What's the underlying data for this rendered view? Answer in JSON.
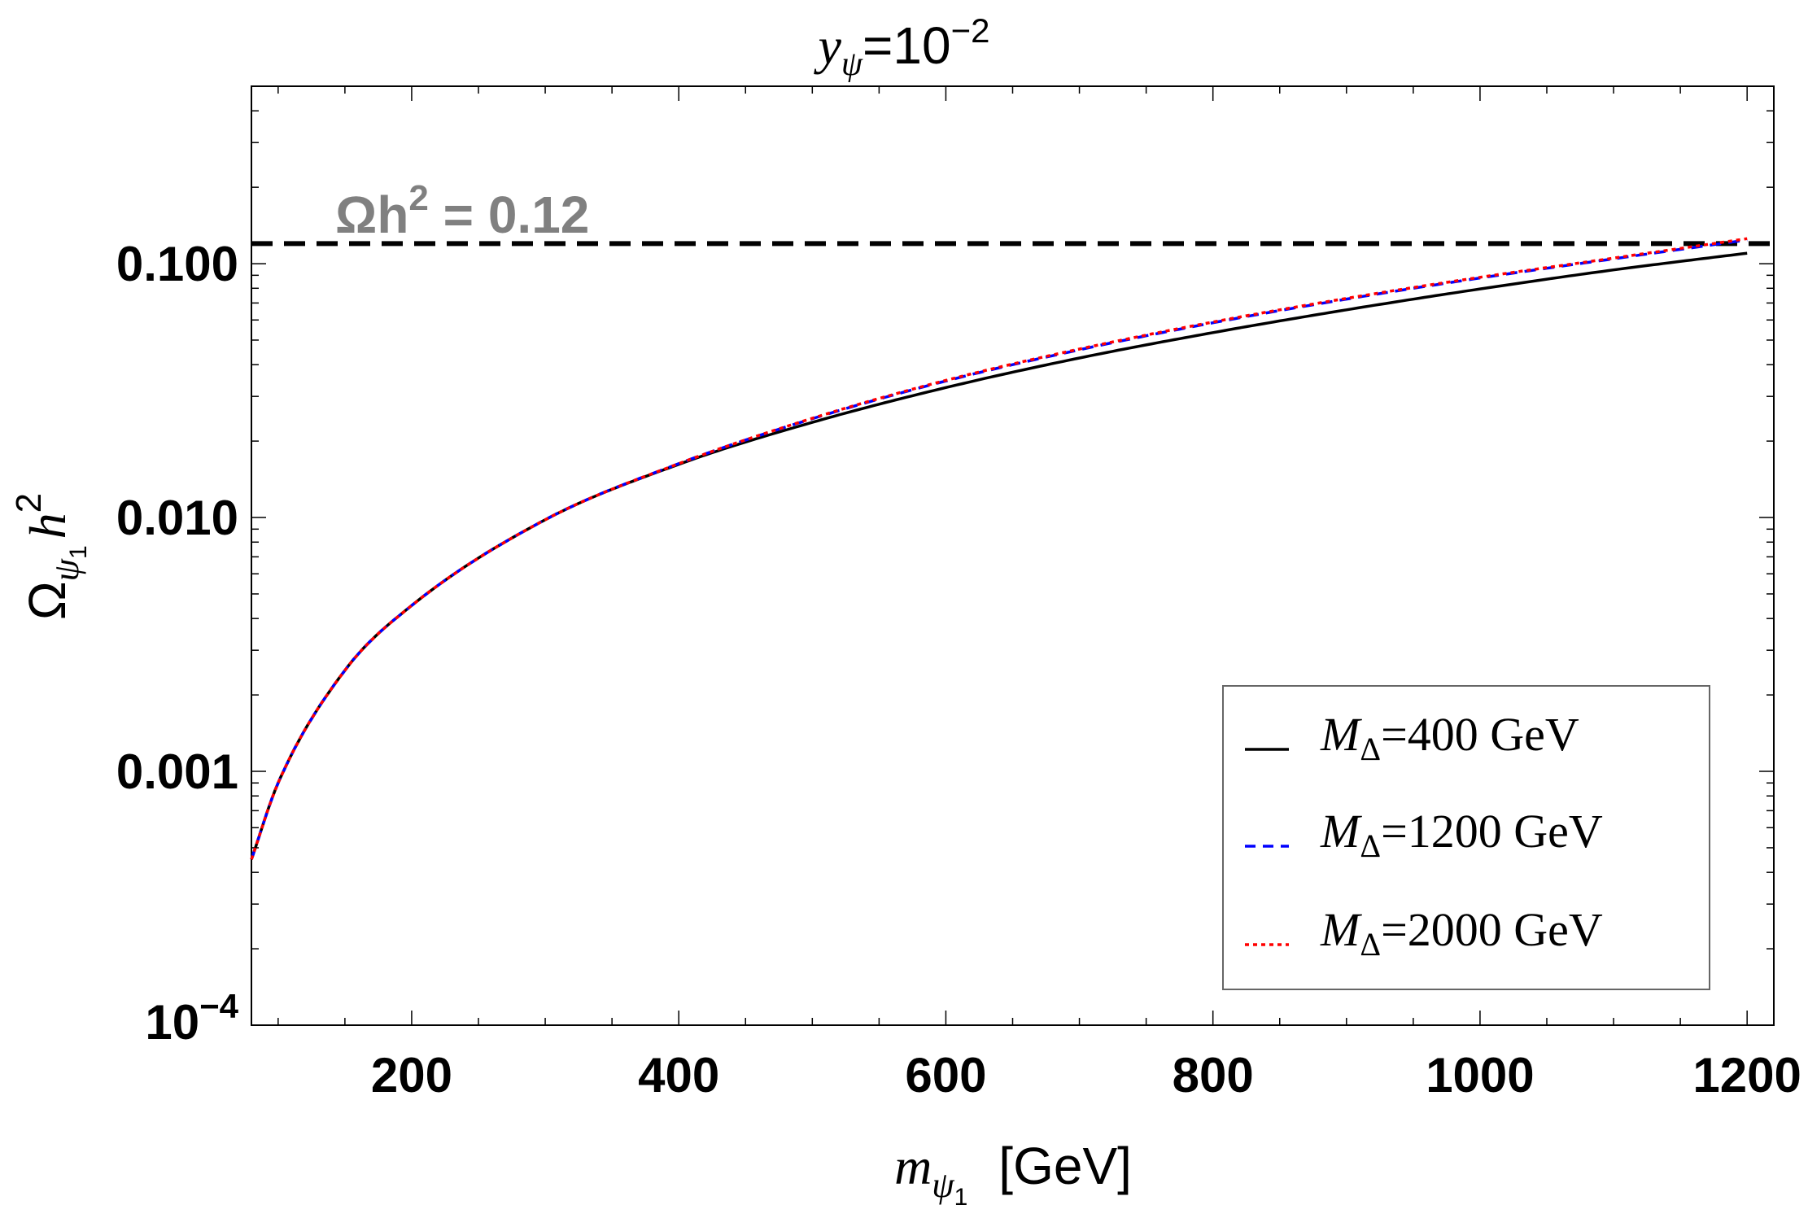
{
  "chart_data": {
    "type": "line",
    "title": "y_ψ=10^−2",
    "title_parts": {
      "base": "y",
      "sub": "ψ",
      "mid": "=10",
      "sup": "−2"
    },
    "xlabel_parts": {
      "base": "m",
      "sub": "ψ",
      "subsub": "1",
      "unit": "[GeV]"
    },
    "ylabel_parts": {
      "base": "Ω",
      "sub": "ψ",
      "subsub": "1",
      "h": "h",
      "sup": "2"
    },
    "x_scale": "linear",
    "y_scale": "log",
    "xlim": [
      80,
      1220
    ],
    "ylim": [
      0.0001,
      0.5
    ],
    "x_ticks": [
      200,
      400,
      600,
      800,
      1000,
      1200
    ],
    "x_tick_labels": [
      "200",
      "400",
      "600",
      "800",
      "1000",
      "1200"
    ],
    "y_ticks": [
      0.0001,
      0.001,
      0.01,
      0.1
    ],
    "y_tick_labels": [
      {
        "base": "10",
        "sup": "−4"
      },
      {
        "text": "0.001"
      },
      {
        "text": "0.010"
      },
      {
        "text": "0.100"
      }
    ],
    "grid": false,
    "legend_position": "bottom-right",
    "reference_line": {
      "y": 0.12,
      "style": "dashed",
      "color": "#000000",
      "label": "Ωh",
      "label_sup": "2",
      "label_rest": " = 0.12",
      "label_color": "#808080"
    },
    "series": [
      {
        "name": "M_Δ=400 GeV",
        "legend_parts": {
          "base": "M",
          "sub": "Δ",
          "rest": "=400 GeV"
        },
        "color": "#000000",
        "style": "solid",
        "x": [
          80,
          100,
          150,
          200,
          300,
          400,
          500,
          600,
          700,
          800,
          900,
          1000,
          1100,
          1200
        ],
        "y": [
          0.00045,
          0.0009,
          0.0025,
          0.0045,
          0.0098,
          0.0162,
          0.0237,
          0.0325,
          0.0425,
          0.0535,
          0.0658,
          0.0795,
          0.0945,
          0.11
        ]
      },
      {
        "name": "M_Δ=1200 GeV",
        "legend_parts": {
          "base": "M",
          "sub": "Δ",
          "rest": "=1200 GeV"
        },
        "color": "#0000ff",
        "style": "dashed",
        "x": [
          80,
          100,
          150,
          200,
          300,
          400,
          500,
          600,
          700,
          800,
          900,
          1000,
          1100,
          1200
        ],
        "y": [
          0.00045,
          0.0009,
          0.0025,
          0.0045,
          0.0098,
          0.0163,
          0.0245,
          0.0345,
          0.0458,
          0.0585,
          0.0725,
          0.0878,
          0.1045,
          0.124
        ]
      },
      {
        "name": "M_Δ=2000 GeV",
        "legend_parts": {
          "base": "M",
          "sub": "Δ",
          "rest": "=2000 GeV"
        },
        "color": "#ff0000",
        "style": "dotted",
        "x": [
          80,
          100,
          150,
          200,
          300,
          400,
          500,
          600,
          700,
          800,
          900,
          1000,
          1100,
          1200
        ],
        "y": [
          0.00045,
          0.0009,
          0.0025,
          0.0045,
          0.0098,
          0.0163,
          0.0246,
          0.0347,
          0.0461,
          0.0589,
          0.073,
          0.0884,
          0.1052,
          0.1255
        ]
      }
    ]
  }
}
